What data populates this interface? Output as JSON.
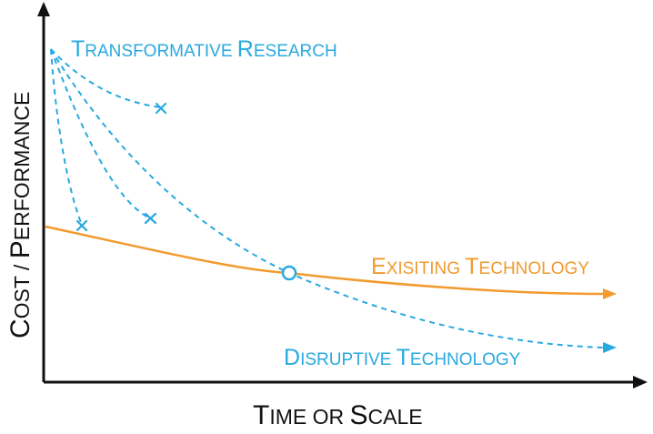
{
  "axes": {
    "x_label": {
      "parts": [
        {
          "big": "T",
          "small": "IME OR "
        },
        {
          "big": "S",
          "small": "CALE"
        }
      ]
    },
    "y_label": {
      "parts": [
        {
          "big": "C",
          "small": "OST / "
        },
        {
          "big": "P",
          "small": "ERFORMANCE"
        }
      ]
    }
  },
  "curves": {
    "transformative_research": {
      "label_parts": [
        {
          "big": "T",
          "small": "RANSFORMATIVE "
        },
        {
          "big": "R",
          "small": "ESEARCH"
        }
      ],
      "color": "#29a9df",
      "style": "dashed"
    },
    "existing_technology": {
      "label_parts": [
        {
          "big": "E",
          "small": "XISITING "
        },
        {
          "big": "T",
          "small": "ECHNOLOGY"
        }
      ],
      "color": "#f29a2e",
      "style": "solid"
    },
    "disruptive_technology": {
      "label_parts": [
        {
          "big": "D",
          "small": "ISRUPTIVE "
        },
        {
          "big": "T",
          "small": "ECHNOLOGY"
        }
      ],
      "color": "#29a9df",
      "style": "dashed"
    }
  },
  "markers": {
    "failed_paths": "x",
    "crossover_point": "circle"
  },
  "colors": {
    "axis": "#111111",
    "research_blue": "#29a9df",
    "existing_orange": "#f29a2e"
  }
}
